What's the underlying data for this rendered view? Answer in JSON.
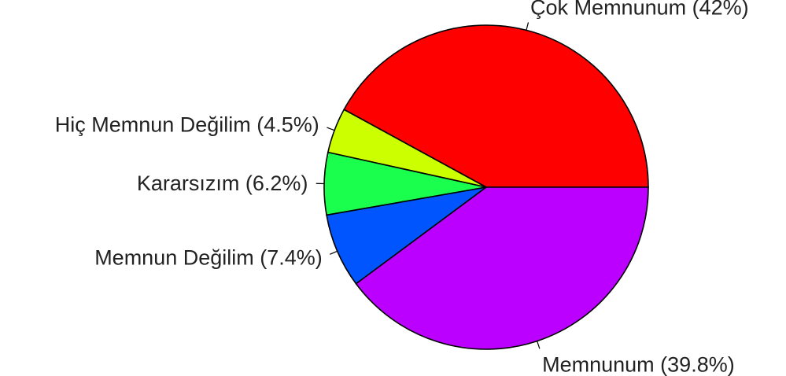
{
  "chart_data": {
    "type": "pie",
    "start_angle_deg": 0,
    "direction": "counterclockwise",
    "slices": [
      {
        "label": "Çok Memnunum (42%)",
        "value": 42.0,
        "color": "#ff0000"
      },
      {
        "label": "Hiç Memnun Değilim (4.5%)",
        "value": 4.5,
        "color": "#ccff00"
      },
      {
        "label": "Kararsızım (6.2%)",
        "value": 6.2,
        "color": "#1aff4d"
      },
      {
        "label": "Memnun Değilim (7.4%)",
        "value": 7.4,
        "color": "#0055ff"
      },
      {
        "label": "Memnunum (39.8%)",
        "value": 39.8,
        "color": "#bb00ff"
      }
    ]
  }
}
